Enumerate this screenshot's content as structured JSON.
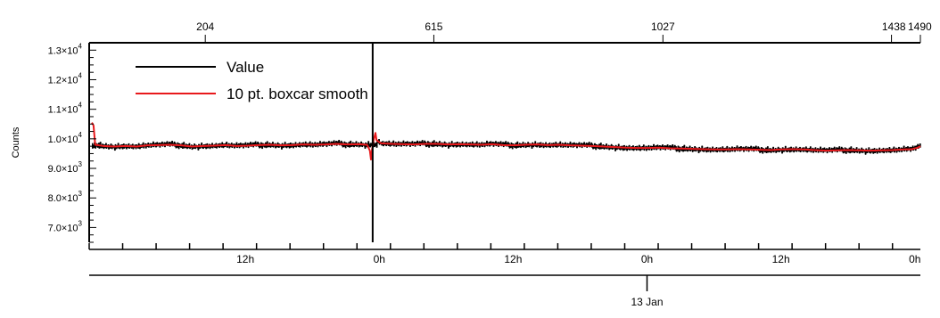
{
  "chart_data": {
    "type": "line",
    "ylabel": "Counts",
    "ylim": [
      6500,
      13250
    ],
    "y_ticks": [
      {
        "value": 7000,
        "label": "7.0×10",
        "exp": "3"
      },
      {
        "value": 8000,
        "label": "8.0×10",
        "exp": "3"
      },
      {
        "value": 9000,
        "label": "9.0×10",
        "exp": "3"
      },
      {
        "value": 10000,
        "label": "1.0×10",
        "exp": "4"
      },
      {
        "value": 11000,
        "label": "1.1×10",
        "exp": "4"
      },
      {
        "value": 12000,
        "label": "1.2×10",
        "exp": "4"
      },
      {
        "value": 13000,
        "label": "1.3×10",
        "exp": "4"
      }
    ],
    "xlim_index": [
      0,
      1490
    ],
    "top_ticks": [
      {
        "value": 204,
        "label": "204"
      },
      {
        "value": 615,
        "label": "615"
      },
      {
        "value": 1027,
        "label": "1027"
      },
      {
        "value": 1438,
        "label": "1438"
      },
      {
        "value": 1490,
        "label": "1490"
      }
    ],
    "bottom_hours_start": -2,
    "bottom_hours_span": 74.5,
    "time_ticks": [
      {
        "hour": 12,
        "label": "12h"
      },
      {
        "hour": 24,
        "label": "0h"
      },
      {
        "hour": 36,
        "label": "12h"
      },
      {
        "hour": 48,
        "label": "0h"
      },
      {
        "hour": 60,
        "label": "12h"
      },
      {
        "hour": 72,
        "label": "0h"
      },
      {
        "hour": 84,
        "label": "12h"
      }
    ],
    "date_axis": {
      "label": "13 Jan",
      "hour": 48
    },
    "cursor_index": 505,
    "legend_position": "top-left",
    "series": [
      {
        "name": "Value",
        "color": "#000000",
        "points": [
          [
            0,
            9820
          ],
          [
            1,
            9680
          ],
          [
            2,
            9770
          ],
          [
            3,
            9700
          ],
          [
            4,
            9840
          ],
          [
            5,
            9750
          ],
          [
            6,
            9660
          ],
          [
            7,
            9810
          ],
          [
            8,
            9730
          ],
          [
            9,
            9790
          ],
          [
            10,
            9700
          ],
          [
            11,
            9760
          ],
          [
            12,
            9830
          ],
          [
            13,
            9680
          ],
          [
            14,
            9750
          ],
          [
            15,
            9870
          ],
          [
            16,
            9700
          ],
          [
            17,
            9780
          ],
          [
            18,
            9710
          ],
          [
            19,
            9820
          ],
          [
            20,
            9740
          ],
          [
            21,
            9690
          ],
          [
            22,
            9800
          ],
          [
            23,
            9760
          ],
          [
            24,
            9720
          ],
          [
            25,
            9850
          ],
          [
            26,
            9700
          ],
          [
            27,
            9770
          ],
          [
            28,
            9740
          ],
          [
            29,
            9810
          ],
          [
            30,
            9680
          ],
          [
            31,
            9750
          ],
          [
            32,
            9790
          ],
          [
            33,
            9710
          ],
          [
            34,
            9840
          ],
          [
            35,
            9760
          ],
          [
            36,
            9700
          ],
          [
            37,
            9800
          ],
          [
            38,
            9740
          ],
          [
            39,
            9780
          ],
          [
            40,
            9720
          ],
          [
            41,
            9650
          ],
          [
            42,
            9820
          ],
          [
            43,
            9760
          ],
          [
            44,
            9700
          ],
          [
            45,
            9790
          ],
          [
            46,
            9740
          ],
          [
            47,
            9860
          ],
          [
            48,
            9710
          ],
          [
            49,
            9770
          ],
          [
            50,
            9690
          ],
          [
            51,
            9800
          ],
          [
            52,
            9750
          ],
          [
            53,
            9720
          ],
          [
            54,
            9810
          ],
          [
            55,
            9680
          ],
          [
            56,
            9760
          ],
          [
            57,
            9830
          ],
          [
            58,
            9700
          ],
          [
            59,
            9780
          ],
          [
            60,
            9730
          ],
          [
            61,
            9810
          ],
          [
            62,
            9680
          ],
          [
            63,
            9760
          ],
          [
            64,
            9790
          ],
          [
            65,
            9720
          ],
          [
            66,
            9840
          ],
          [
            67,
            9700
          ],
          [
            68,
            9770
          ],
          [
            69,
            9740
          ],
          [
            70,
            9800
          ],
          [
            71,
            9710
          ],
          [
            72,
            9760
          ],
          [
            73,
            9830
          ],
          [
            74,
            9690
          ],
          [
            75,
            9770
          ],
          [
            76,
            9730
          ],
          [
            77,
            9810
          ],
          [
            78,
            9760
          ],
          [
            79,
            9700
          ],
          [
            80,
            9820
          ],
          [
            81,
            9740
          ],
          [
            82,
            9790
          ],
          [
            83,
            9710
          ],
          [
            84,
            9850
          ],
          [
            85,
            9750
          ],
          [
            86,
            9690
          ],
          [
            87,
            9800
          ],
          [
            88,
            9770
          ],
          [
            89,
            9720
          ],
          [
            90,
            9810
          ],
          [
            91,
            9740
          ],
          [
            92,
            9860
          ],
          [
            93,
            9700
          ],
          [
            94,
            9780
          ],
          [
            95,
            9750
          ],
          [
            96,
            9820
          ],
          [
            97,
            9690
          ],
          [
            98,
            9770
          ],
          [
            99,
            9800
          ],
          [
            100,
            9730
          ],
          [
            101,
            9840
          ],
          [
            102,
            9710
          ],
          [
            103,
            9790
          ],
          [
            104,
            9760
          ],
          [
            105,
            9820
          ],
          [
            106,
            9700
          ],
          [
            107,
            9780
          ],
          [
            108,
            9810
          ],
          [
            109,
            9740
          ],
          [
            110,
            9870
          ],
          [
            111,
            9720
          ],
          [
            112,
            9800
          ],
          [
            113,
            9760
          ],
          [
            114,
            9830
          ],
          [
            115,
            9710
          ],
          [
            116,
            9790
          ],
          [
            117,
            9850
          ],
          [
            118,
            9740
          ],
          [
            119,
            9810
          ],
          [
            120,
            9760
          ],
          [
            121,
            9830
          ],
          [
            122,
            9700
          ],
          [
            123,
            9790
          ],
          [
            124,
            9820
          ],
          [
            125,
            9750
          ],
          [
            126,
            9860
          ],
          [
            127,
            9730
          ],
          [
            128,
            9800
          ],
          [
            129,
            9770
          ],
          [
            130,
            9840
          ],
          [
            131,
            9710
          ],
          [
            132,
            9800
          ],
          [
            133,
            9830
          ],
          [
            134,
            9760
          ],
          [
            135,
            9870
          ],
          [
            136,
            9740
          ],
          [
            137,
            9810
          ],
          [
            138,
            9780
          ],
          [
            139,
            9850
          ],
          [
            140,
            9720
          ],
          [
            141,
            9800
          ],
          [
            142,
            9840
          ],
          [
            143,
            9760
          ],
          [
            144,
            9880
          ],
          [
            145,
            9740
          ],
          [
            146,
            9810
          ],
          [
            147,
            9790
          ],
          [
            148,
            9860
          ],
          [
            149,
            9730
          ]
        ]
      },
      {
        "name": "10 pt. boxcar smooth",
        "color": "#e8191c",
        "points": [
          [
            0,
            10550
          ],
          [
            3,
            10450
          ],
          [
            6,
            9800
          ],
          [
            20,
            9760
          ],
          [
            40,
            9740
          ],
          [
            60,
            9760
          ],
          [
            80,
            9740
          ],
          [
            100,
            9780
          ],
          [
            120,
            9790
          ],
          [
            140,
            9800
          ],
          [
            160,
            9780
          ],
          [
            180,
            9740
          ],
          [
            200,
            9760
          ],
          [
            220,
            9770
          ],
          [
            240,
            9790
          ],
          [
            260,
            9760
          ],
          [
            280,
            9770
          ],
          [
            300,
            9790
          ],
          [
            320,
            9800
          ],
          [
            340,
            9780
          ],
          [
            360,
            9790
          ],
          [
            380,
            9810
          ],
          [
            400,
            9800
          ],
          [
            420,
            9810
          ],
          [
            440,
            9830
          ],
          [
            460,
            9810
          ],
          [
            480,
            9820
          ],
          [
            495,
            9800
          ],
          [
            500,
            9600
          ],
          [
            502,
            9300
          ],
          [
            504,
            9650
          ],
          [
            506,
            9900
          ],
          [
            508,
            10050
          ],
          [
            510,
            10200
          ],
          [
            512,
            9950
          ],
          [
            520,
            9850
          ],
          [
            540,
            9830
          ],
          [
            560,
            9820
          ],
          [
            580,
            9810
          ],
          [
            600,
            9830
          ],
          [
            620,
            9830
          ],
          [
            640,
            9810
          ],
          [
            660,
            9820
          ],
          [
            680,
            9810
          ],
          [
            700,
            9800
          ],
          [
            720,
            9820
          ],
          [
            740,
            9790
          ],
          [
            760,
            9780
          ],
          [
            780,
            9800
          ],
          [
            800,
            9810
          ],
          [
            820,
            9790
          ],
          [
            840,
            9800
          ],
          [
            860,
            9780
          ],
          [
            880,
            9770
          ],
          [
            900,
            9760
          ],
          [
            920,
            9740
          ],
          [
            940,
            9720
          ],
          [
            960,
            9700
          ],
          [
            980,
            9690
          ],
          [
            1000,
            9690
          ],
          [
            1020,
            9700
          ],
          [
            1040,
            9680
          ],
          [
            1060,
            9670
          ],
          [
            1080,
            9660
          ],
          [
            1100,
            9650
          ],
          [
            1120,
            9640
          ],
          [
            1140,
            9640
          ],
          [
            1160,
            9650
          ],
          [
            1180,
            9640
          ],
          [
            1200,
            9630
          ],
          [
            1220,
            9620
          ],
          [
            1240,
            9640
          ],
          [
            1260,
            9650
          ],
          [
            1280,
            9640
          ],
          [
            1300,
            9620
          ],
          [
            1320,
            9600
          ],
          [
            1340,
            9610
          ],
          [
            1360,
            9620
          ],
          [
            1380,
            9610
          ],
          [
            1400,
            9600
          ],
          [
            1420,
            9610
          ],
          [
            1440,
            9620
          ],
          [
            1460,
            9640
          ],
          [
            1475,
            9650
          ],
          [
            1485,
            9700
          ],
          [
            1490,
            9750
          ]
        ]
      }
    ]
  }
}
